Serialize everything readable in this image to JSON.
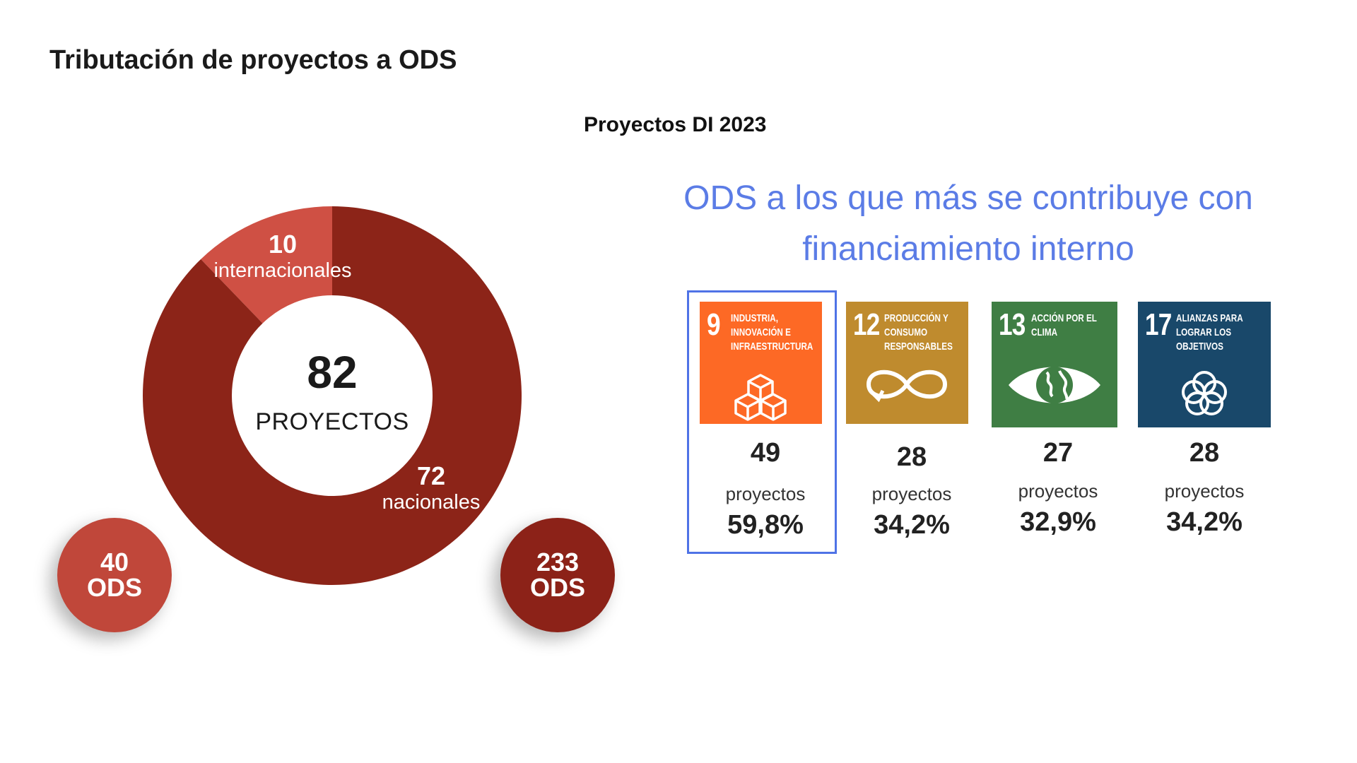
{
  "title": "Tributación de proyectos a ODS",
  "subtitle": "Proyectos DI 2023",
  "donut": {
    "total": "82",
    "total_label": "PROYECTOS",
    "segments": [
      {
        "value": "10",
        "label": "internacionales",
        "color": "#cf5044"
      },
      {
        "value": "72",
        "label": "nacionales",
        "color": "#8c2418"
      }
    ]
  },
  "ods_bubbles": [
    {
      "value": "40",
      "label": "ODS",
      "color": "#c0473a"
    },
    {
      "value": "233",
      "label": "ODS",
      "color": "#8c2218"
    }
  ],
  "ods_heading": "ODS  a los que más se contribuye con financiamiento interno",
  "ods_cards": [
    {
      "number": "9",
      "name": "INDUSTRIA, INNOVACIÓN E INFRAESTRUCTURA",
      "icon": "cubes-icon",
      "color": "#fd6925",
      "count": "49",
      "count_label": "proyectos",
      "percent": "59,8%",
      "highlighted": true
    },
    {
      "number": "12",
      "name": "PRODUCCIÓN Y CONSUMO RESPONSABLES",
      "icon": "infinity-icon",
      "color": "#bf8b2e",
      "count": "28",
      "count_label": "proyectos",
      "percent": "34,2%",
      "highlighted": false
    },
    {
      "number": "13",
      "name": "ACCIÓN POR EL CLIMA",
      "icon": "eye-globe-icon",
      "color": "#3f7e44",
      "count": "27",
      "count_label": "proyectos",
      "percent": "32,9%",
      "highlighted": false
    },
    {
      "number": "17",
      "name": "ALIANZAS PARA LOGRAR LOS OBJETIVOS",
      "icon": "rings-icon",
      "color": "#19486a",
      "count": "28",
      "count_label": "proyectos",
      "percent": "34,2%",
      "highlighted": false
    }
  ],
  "chart_data": [
    {
      "type": "pie",
      "title": "",
      "categories": [
        "internacionales",
        "nacionales"
      ],
      "values": [
        10,
        72
      ],
      "total": 82
    },
    {
      "type": "bar",
      "title": "ODS  a los que más se contribuye con financiamiento interno",
      "categories": [
        "9",
        "12",
        "13",
        "17"
      ],
      "values": [
        49,
        28,
        27,
        28
      ],
      "percentages": [
        59.8,
        34.2,
        32.9,
        34.2
      ]
    }
  ]
}
